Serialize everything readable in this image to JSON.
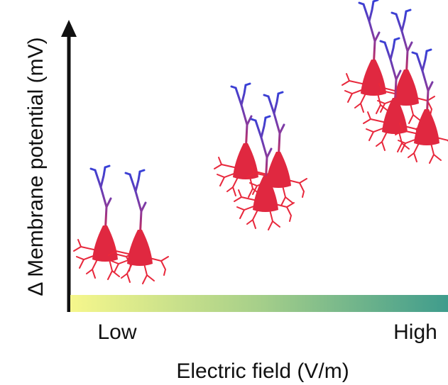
{
  "y_axis": {
    "label": "Δ Membrane potential (mV)"
  },
  "x_axis": {
    "label": "Electric field (V/m)",
    "low": "Low",
    "high": "High"
  }
}
